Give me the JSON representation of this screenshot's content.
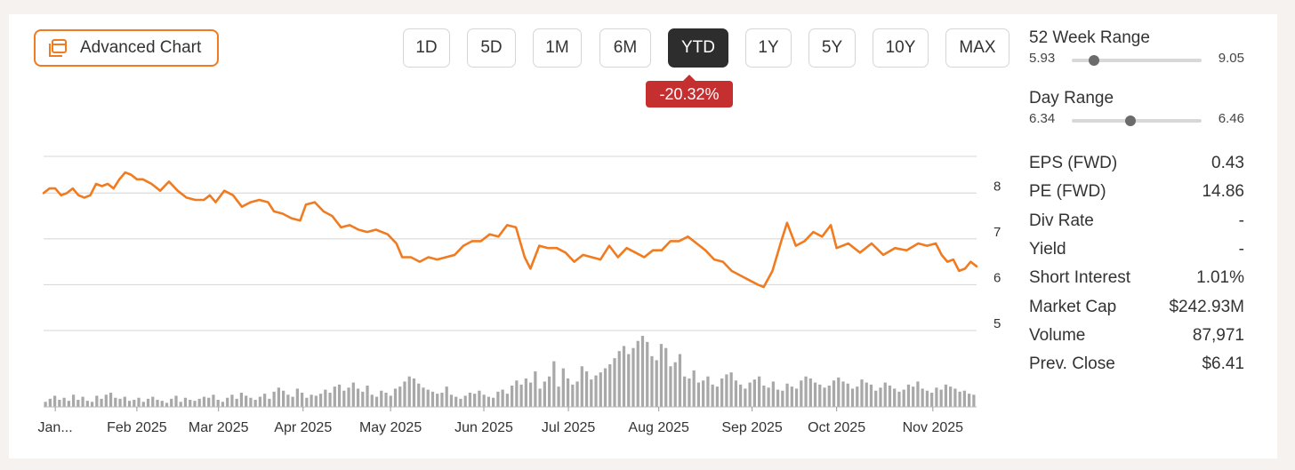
{
  "toolbar": {
    "advanced_chart_label": "Advanced Chart",
    "ranges": [
      "1D",
      "5D",
      "1M",
      "6M",
      "YTD",
      "1Y",
      "5Y",
      "10Y",
      "MAX"
    ],
    "active_range": "YTD",
    "change": "-20.32%"
  },
  "colors": {
    "accent": "#f07b20",
    "negative": "#c62f2f",
    "volume": "#a8a8a8"
  },
  "stats": {
    "week52": {
      "label": "52 Week Range",
      "low": "5.93",
      "high": "9.05",
      "position": 0.17
    },
    "day": {
      "label": "Day Range",
      "low": "6.34",
      "high": "6.46",
      "position": 0.45
    },
    "rows": [
      {
        "label": "EPS (FWD)",
        "value": "0.43"
      },
      {
        "label": "PE (FWD)",
        "value": "14.86"
      },
      {
        "label": "Div Rate",
        "value": "-"
      },
      {
        "label": "Yield",
        "value": "-"
      },
      {
        "label": "Short Interest",
        "value": "1.01%"
      },
      {
        "label": "Market Cap",
        "value": "$242.93M"
      },
      {
        "label": "Volume",
        "value": "87,971"
      },
      {
        "label": "Prev. Close",
        "value": "$6.41"
      }
    ]
  },
  "chart_data": {
    "type": "line",
    "x_start": "2025-01-02",
    "x_end": "2025-11-18",
    "ylim": [
      5,
      8.8
    ],
    "yticks": [
      8,
      7,
      6,
      5
    ],
    "xticks": [
      {
        "label": "Jan...",
        "date": "2025-01-06"
      },
      {
        "label": "Feb 2025",
        "date": "2025-02-03"
      },
      {
        "label": "Mar 2025",
        "date": "2025-03-03"
      },
      {
        "label": "Apr 2025",
        "date": "2025-04-01"
      },
      {
        "label": "May 2025",
        "date": "2025-05-01"
      },
      {
        "label": "Jun 2025",
        "date": "2025-06-02"
      },
      {
        "label": "Jul 2025",
        "date": "2025-07-01"
      },
      {
        "label": "Aug 2025",
        "date": "2025-08-01"
      },
      {
        "label": "Sep 2025",
        "date": "2025-09-02"
      },
      {
        "label": "Oct 2025",
        "date": "2025-10-01"
      },
      {
        "label": "Nov 2025",
        "date": "2025-11-03"
      }
    ],
    "series": [
      {
        "values": [
          [
            "2025-01-02",
            8.0
          ],
          [
            "2025-01-04",
            8.1
          ],
          [
            "2025-01-06",
            8.1
          ],
          [
            "2025-01-08",
            7.95
          ],
          [
            "2025-01-10",
            8.0
          ],
          [
            "2025-01-12",
            8.1
          ],
          [
            "2025-01-14",
            7.95
          ],
          [
            "2025-01-16",
            7.9
          ],
          [
            "2025-01-18",
            7.95
          ],
          [
            "2025-01-20",
            8.2
          ],
          [
            "2025-01-22",
            8.15
          ],
          [
            "2025-01-24",
            8.2
          ],
          [
            "2025-01-26",
            8.1
          ],
          [
            "2025-01-28",
            8.3
          ],
          [
            "2025-01-30",
            8.45
          ],
          [
            "2025-02-01",
            8.4
          ],
          [
            "2025-02-03",
            8.3
          ],
          [
            "2025-02-05",
            8.3
          ],
          [
            "2025-02-08",
            8.2
          ],
          [
            "2025-02-11",
            8.05
          ],
          [
            "2025-02-14",
            8.25
          ],
          [
            "2025-02-17",
            8.05
          ],
          [
            "2025-02-20",
            7.9
          ],
          [
            "2025-02-23",
            7.85
          ],
          [
            "2025-02-26",
            7.85
          ],
          [
            "2025-02-28",
            7.95
          ],
          [
            "2025-03-02",
            7.8
          ],
          [
            "2025-03-05",
            8.05
          ],
          [
            "2025-03-08",
            7.95
          ],
          [
            "2025-03-11",
            7.7
          ],
          [
            "2025-03-14",
            7.8
          ],
          [
            "2025-03-17",
            7.85
          ],
          [
            "2025-03-20",
            7.8
          ],
          [
            "2025-03-22",
            7.6
          ],
          [
            "2025-03-25",
            7.55
          ],
          [
            "2025-03-28",
            7.45
          ],
          [
            "2025-03-31",
            7.4
          ],
          [
            "2025-04-02",
            7.75
          ],
          [
            "2025-04-05",
            7.8
          ],
          [
            "2025-04-08",
            7.6
          ],
          [
            "2025-04-11",
            7.5
          ],
          [
            "2025-04-14",
            7.25
          ],
          [
            "2025-04-17",
            7.3
          ],
          [
            "2025-04-20",
            7.2
          ],
          [
            "2025-04-23",
            7.15
          ],
          [
            "2025-04-26",
            7.2
          ],
          [
            "2025-04-30",
            7.1
          ],
          [
            "2025-05-03",
            6.9
          ],
          [
            "2025-05-05",
            6.6
          ],
          [
            "2025-05-08",
            6.6
          ],
          [
            "2025-05-11",
            6.5
          ],
          [
            "2025-05-14",
            6.6
          ],
          [
            "2025-05-17",
            6.55
          ],
          [
            "2025-05-20",
            6.6
          ],
          [
            "2025-05-23",
            6.65
          ],
          [
            "2025-05-26",
            6.85
          ],
          [
            "2025-05-29",
            6.95
          ],
          [
            "2025-06-01",
            6.95
          ],
          [
            "2025-06-04",
            7.1
          ],
          [
            "2025-06-07",
            7.05
          ],
          [
            "2025-06-10",
            7.3
          ],
          [
            "2025-06-13",
            7.25
          ],
          [
            "2025-06-16",
            6.6
          ],
          [
            "2025-06-18",
            6.35
          ],
          [
            "2025-06-21",
            6.85
          ],
          [
            "2025-06-24",
            6.8
          ],
          [
            "2025-06-27",
            6.8
          ],
          [
            "2025-06-30",
            6.7
          ],
          [
            "2025-07-03",
            6.5
          ],
          [
            "2025-07-06",
            6.65
          ],
          [
            "2025-07-09",
            6.6
          ],
          [
            "2025-07-12",
            6.55
          ],
          [
            "2025-07-15",
            6.85
          ],
          [
            "2025-07-18",
            6.6
          ],
          [
            "2025-07-21",
            6.8
          ],
          [
            "2025-07-24",
            6.7
          ],
          [
            "2025-07-27",
            6.6
          ],
          [
            "2025-07-30",
            6.75
          ],
          [
            "2025-08-02",
            6.75
          ],
          [
            "2025-08-05",
            6.95
          ],
          [
            "2025-08-08",
            6.95
          ],
          [
            "2025-08-11",
            7.05
          ],
          [
            "2025-08-14",
            6.9
          ],
          [
            "2025-08-17",
            6.75
          ],
          [
            "2025-08-20",
            6.55
          ],
          [
            "2025-08-23",
            6.5
          ],
          [
            "2025-08-26",
            6.3
          ],
          [
            "2025-08-29",
            6.2
          ],
          [
            "2025-09-01",
            6.1
          ],
          [
            "2025-09-04",
            6.0
          ],
          [
            "2025-09-06",
            5.95
          ],
          [
            "2025-09-09",
            6.3
          ],
          [
            "2025-09-12",
            6.95
          ],
          [
            "2025-09-14",
            7.35
          ],
          [
            "2025-09-17",
            6.85
          ],
          [
            "2025-09-20",
            6.95
          ],
          [
            "2025-09-23",
            7.15
          ],
          [
            "2025-09-26",
            7.05
          ],
          [
            "2025-09-29",
            7.3
          ],
          [
            "2025-10-01",
            6.8
          ],
          [
            "2025-10-05",
            6.9
          ],
          [
            "2025-10-09",
            6.7
          ],
          [
            "2025-10-13",
            6.9
          ],
          [
            "2025-10-17",
            6.65
          ],
          [
            "2025-10-21",
            6.8
          ],
          [
            "2025-10-25",
            6.75
          ],
          [
            "2025-10-29",
            6.9
          ],
          [
            "2025-11-01",
            6.85
          ],
          [
            "2025-11-04",
            6.9
          ],
          [
            "2025-11-06",
            6.65
          ],
          [
            "2025-11-08",
            6.5
          ],
          [
            "2025-11-10",
            6.55
          ],
          [
            "2025-11-12",
            6.3
          ],
          [
            "2025-11-14",
            6.35
          ],
          [
            "2025-11-16",
            6.5
          ],
          [
            "2025-11-18",
            6.4
          ]
        ]
      }
    ],
    "volume": [
      5,
      8,
      11,
      7,
      9,
      6,
      12,
      7,
      10,
      6,
      5,
      11,
      8,
      12,
      14,
      9,
      8,
      10,
      6,
      7,
      9,
      5,
      8,
      10,
      7,
      6,
      4,
      8,
      11,
      5,
      9,
      7,
      6,
      8,
      10,
      9,
      12,
      7,
      5,
      9,
      12,
      8,
      14,
      11,
      9,
      7,
      10,
      13,
      8,
      15,
      19,
      16,
      12,
      10,
      18,
      14,
      9,
      12,
      11,
      13,
      17,
      14,
      20,
      22,
      16,
      19,
      24,
      18,
      15,
      21,
      12,
      10,
      16,
      14,
      11,
      18,
      20,
      25,
      30,
      28,
      23,
      19,
      17,
      15,
      13,
      14,
      20,
      12,
      10,
      8,
      11,
      14,
      13,
      16,
      12,
      10,
      9,
      15,
      17,
      13,
      21,
      26,
      22,
      28,
      24,
      35,
      18,
      25,
      30,
      45,
      20,
      38,
      28,
      22,
      25,
      40,
      35,
      27,
      31,
      34,
      38,
      42,
      48,
      55,
      60,
      52,
      58,
      65,
      70,
      64,
      50,
      46,
      62,
      58,
      40,
      44,
      52,
      30,
      28,
      36,
      24,
      26,
      30,
      22,
      20,
      28,
      32,
      34,
      26,
      22,
      18,
      24,
      27,
      30,
      21,
      19,
      25,
      17,
      16,
      23,
      20,
      18,
      26,
      30,
      28,
      24,
      22,
      19,
      21,
      26,
      29,
      25,
      23,
      18,
      20,
      27,
      24,
      22,
      16,
      19,
      24,
      21,
      18,
      15,
      17,
      22,
      20,
      25,
      18,
      16,
      14,
      19,
      17,
      22,
      20,
      18,
      15,
      16,
      13,
      12
    ]
  }
}
